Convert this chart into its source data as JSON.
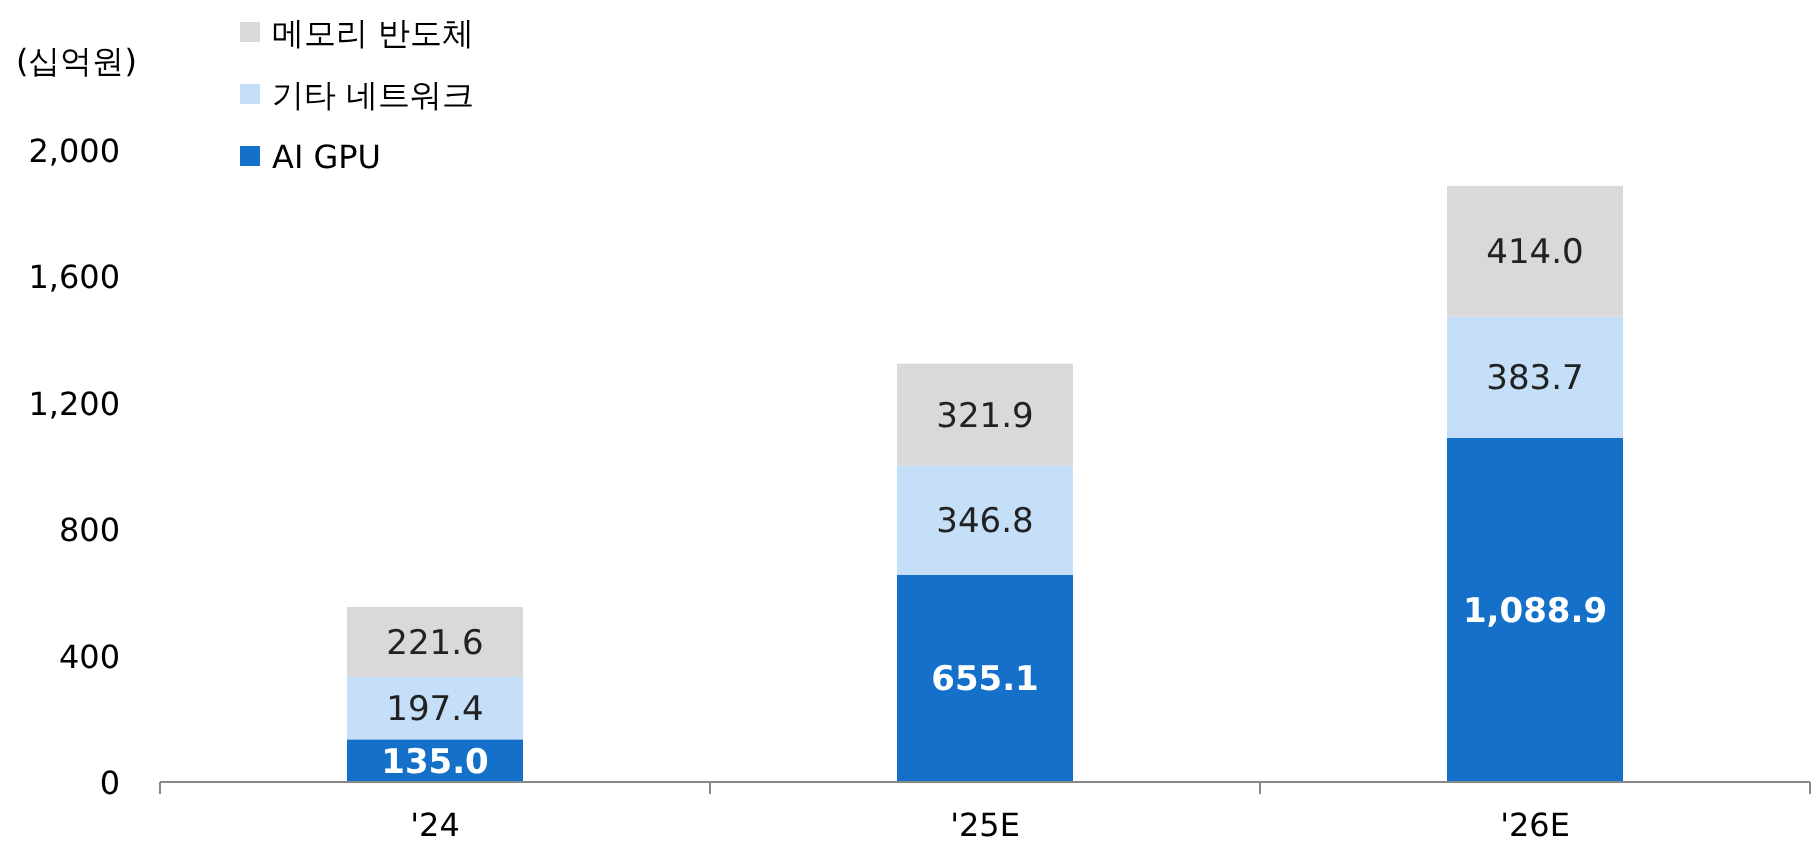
{
  "chart_data": {
    "type": "bar",
    "stacked": true,
    "ylabel": "(십억원)",
    "categories": [
      "'24",
      "'25E",
      "'26E"
    ],
    "series": [
      {
        "name": "AI GPU",
        "color": "#1470c8",
        "values": [
          135.0,
          655.1,
          1088.9
        ],
        "value_labels": [
          "135.0",
          "655.1",
          "1,088.9"
        ]
      },
      {
        "name": "기타 네트워크",
        "color": "#c5dff8",
        "values": [
          197.4,
          346.8,
          383.7
        ],
        "value_labels": [
          "197.4",
          "346.8",
          "383.7"
        ]
      },
      {
        "name": "메모리 반도체",
        "color": "#d9d9d9",
        "values": [
          221.6,
          321.9,
          414.0
        ],
        "value_labels": [
          "221.6",
          "321.9",
          "414.0"
        ]
      }
    ],
    "ylim": [
      0,
      2000
    ],
    "yticks": [
      {
        "value": 0,
        "label": "0"
      },
      {
        "value": 400,
        "label": "400"
      },
      {
        "value": 800,
        "label": "800"
      },
      {
        "value": 1200,
        "label": "1,200"
      },
      {
        "value": 1600,
        "label": "1,600"
      },
      {
        "value": 2000,
        "label": "2,000"
      }
    ],
    "legend": "top left",
    "grid": false
  }
}
